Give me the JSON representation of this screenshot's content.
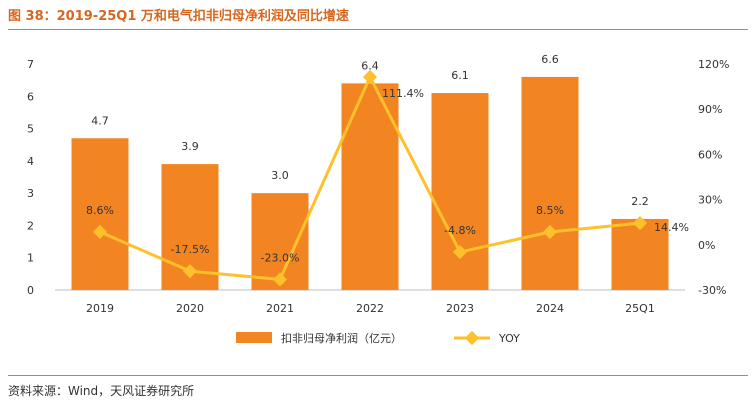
{
  "figure": {
    "title": "图 38：2019-25Q1 万和电气扣非归母净利润及同比增速",
    "source": "资料来源：Wind，天风证券研究所"
  },
  "colors": {
    "bar": "#f28522",
    "line": "#fec02b",
    "rule": "#e07a2e",
    "title": "#d9661f"
  },
  "chart_data": {
    "type": "bar",
    "categories": [
      "2019",
      "2020",
      "2021",
      "2022",
      "2023",
      "2024",
      "25Q1"
    ],
    "series": [
      {
        "name": "扣非归母净利润（亿元）",
        "type": "bar",
        "axis": "left",
        "values": [
          4.7,
          3.9,
          3.0,
          6.4,
          6.1,
          6.6,
          2.2
        ],
        "labels": [
          "4.7",
          "3.9",
          "3.0",
          "6.4",
          "6.1",
          "6.6",
          "2.2"
        ]
      },
      {
        "name": "YOY",
        "type": "line",
        "axis": "right",
        "values": [
          8.6,
          -17.5,
          -23.0,
          111.4,
          -4.8,
          8.5,
          14.4
        ],
        "labels": [
          "8.6%",
          "-17.5%",
          "-23.0%",
          "111.4%",
          "-4.8%",
          "8.5%",
          "14.4%"
        ]
      }
    ],
    "y_left": {
      "range": [
        0,
        7
      ],
      "ticks": [
        "0",
        "1",
        "2",
        "3",
        "4",
        "5",
        "6",
        "7"
      ]
    },
    "y_right": {
      "range": [
        -30,
        120
      ],
      "ticks": [
        "-30%",
        "0%",
        "30%",
        "60%",
        "90%",
        "120%"
      ]
    },
    "grid": false,
    "legend_position": "bottom"
  }
}
